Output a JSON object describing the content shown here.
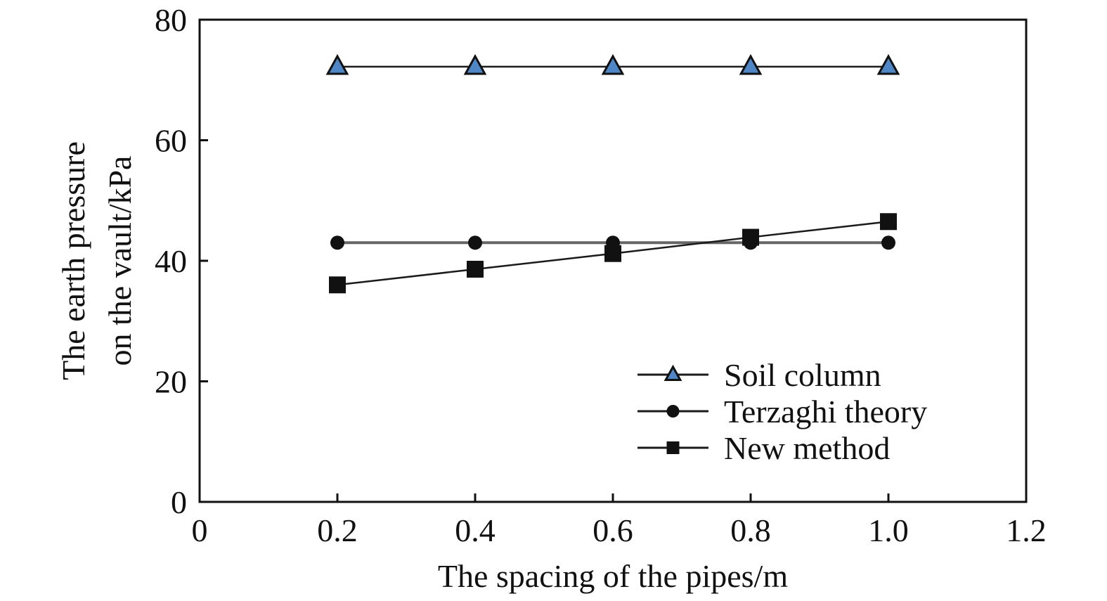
{
  "chart_data": {
    "type": "line",
    "xlabel": "The spacing of the pipes/m",
    "ylabel_lines": [
      "The earth pressure",
      "on the vault/kPa"
    ],
    "xlim": [
      0,
      1.2
    ],
    "ylim": [
      0,
      80
    ],
    "x_ticks": [
      0,
      0.2,
      0.4,
      0.6,
      0.8,
      1.0,
      1.2
    ],
    "x_tick_labels": [
      "0",
      "0.2",
      "0.4",
      "0.6",
      "0.8",
      "1.0",
      "1.2"
    ],
    "y_ticks": [
      0,
      20,
      40,
      60,
      80
    ],
    "y_tick_labels": [
      "0",
      "20",
      "40",
      "60",
      "80"
    ],
    "grid": false,
    "legend_position": "bottom-right",
    "x": [
      0.2,
      0.4,
      0.6,
      0.8,
      1.0
    ],
    "series": [
      {
        "name": "Soil column",
        "marker": "triangle",
        "values": [
          72.2,
          72.2,
          72.2,
          72.2,
          72.2
        ]
      },
      {
        "name": "Terzaghi theory",
        "marker": "circle",
        "values": [
          43.0,
          43.0,
          43.0,
          43.0,
          43.0
        ]
      },
      {
        "name": "New method",
        "marker": "square",
        "values": [
          36.0,
          38.6,
          41.2,
          43.9,
          46.5
        ]
      }
    ],
    "colors": {
      "line": "#1a1a1a",
      "terzaghi_line": "#666666",
      "triangle_fill": "#4f86c6",
      "marker_fill": "#111111"
    }
  }
}
